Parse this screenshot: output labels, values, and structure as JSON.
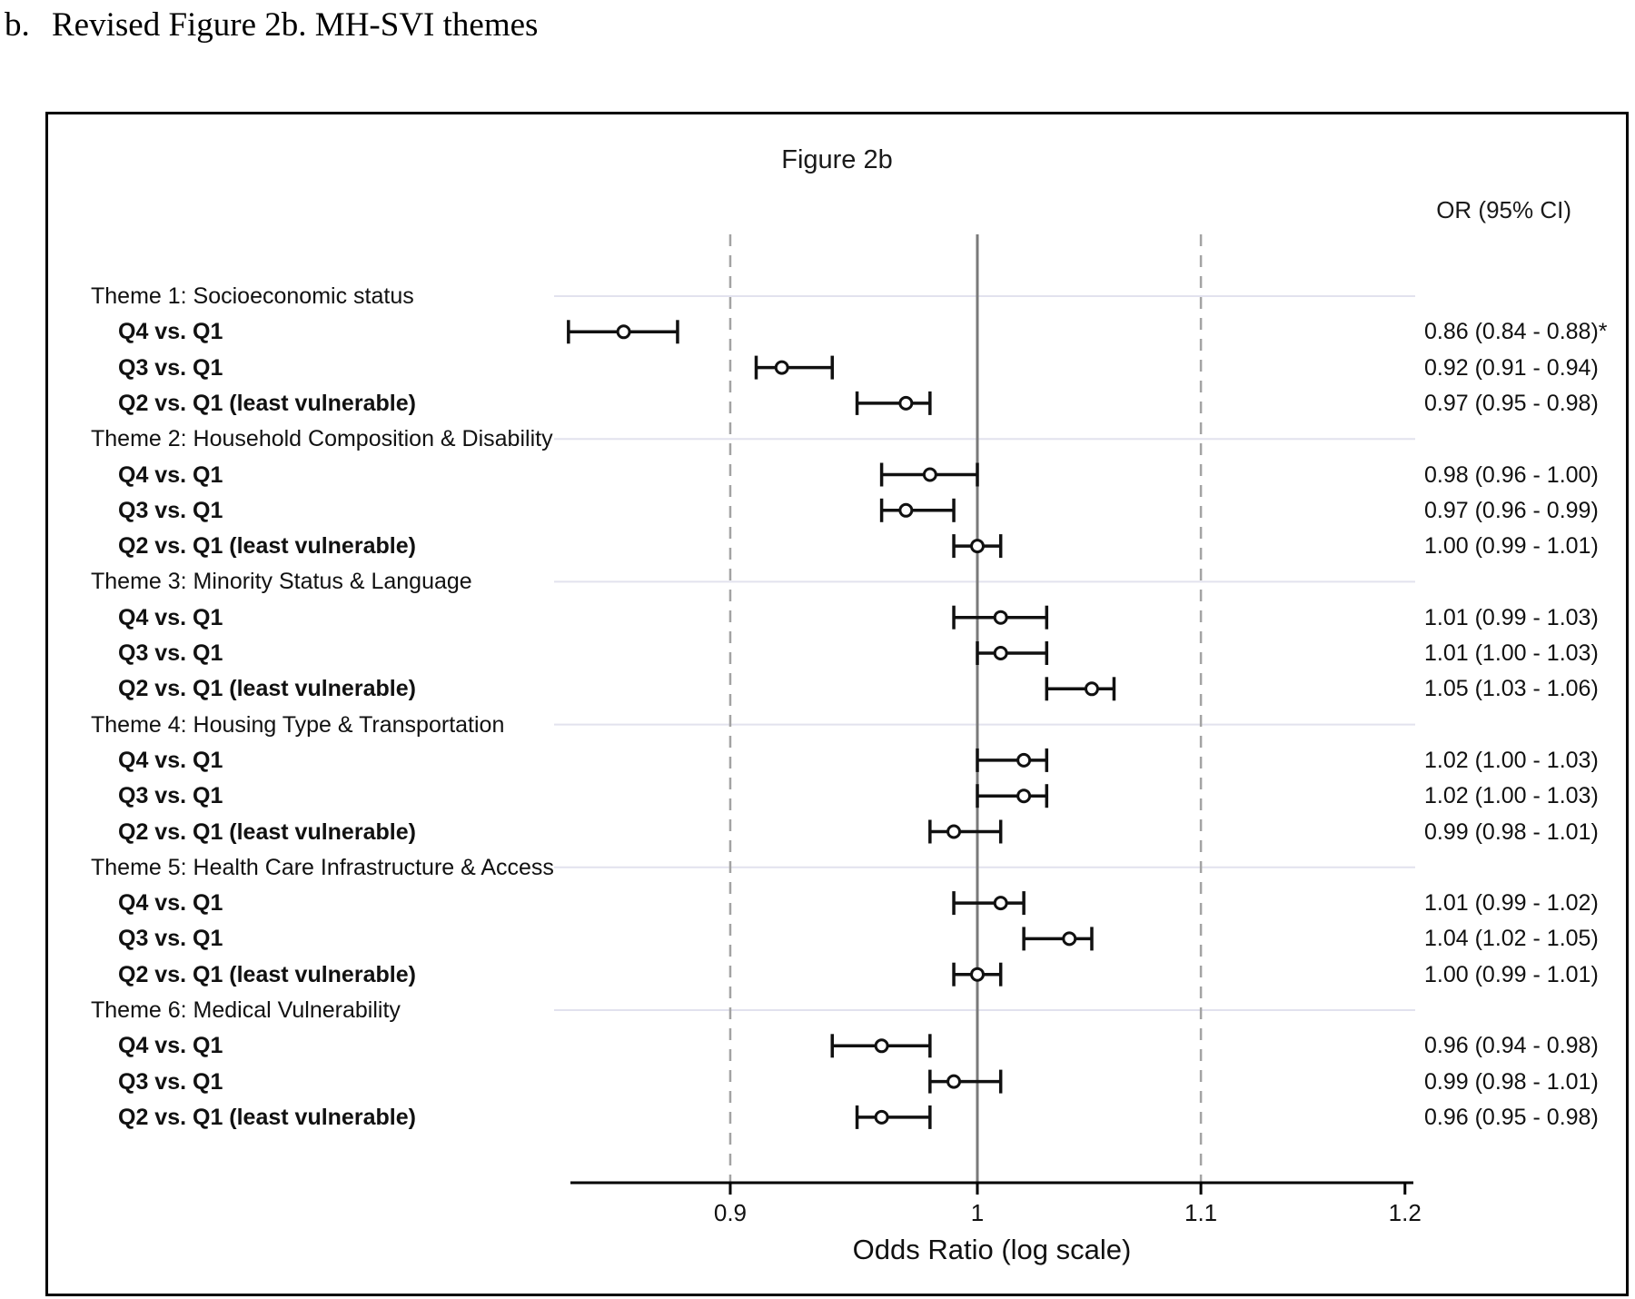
{
  "page": {
    "heading_marker": "b.",
    "heading_text": "Revised Figure 2b. MH-SVI themes"
  },
  "figure": {
    "title": "Figure 2b",
    "or_header": "OR (95% CI)",
    "xlabel": "Odds Ratio (log scale)"
  },
  "chart_data": {
    "type": "forest-plot",
    "title": "Figure 2b",
    "xlabel": "Odds Ratio (log scale)",
    "x_scale": "log",
    "xlim": [
      0.84,
      1.2
    ],
    "x_ticks": [
      0.9,
      1,
      1.1,
      1.2
    ],
    "x_tick_labels": [
      "0.9",
      "1",
      "1.1",
      "1.2"
    ],
    "reference_line": 1.0,
    "dashed_gridlines": [
      0.9,
      1.1
    ],
    "value_column_header": "OR (95% CI)",
    "colors": {
      "marker": "#111111",
      "reference_line": "#7a7a7a",
      "dashed_line": "#a3a3a3",
      "theme_gridline": "#e2e2ee",
      "axis": "#000000"
    },
    "rows": [
      {
        "type": "theme",
        "label": "Theme 1: Socioeconomic status"
      },
      {
        "type": "estimate",
        "label": "Q4 vs. Q1",
        "or": 0.86,
        "lo": 0.84,
        "hi": 0.88,
        "text": "0.86 (0.84 - 0.88)*"
      },
      {
        "type": "estimate",
        "label": "Q3 vs. Q1",
        "or": 0.92,
        "lo": 0.91,
        "hi": 0.94,
        "text": "0.92 (0.91 - 0.94)"
      },
      {
        "type": "estimate",
        "label": "Q2 vs. Q1 (least vulnerable)",
        "or": 0.97,
        "lo": 0.95,
        "hi": 0.98,
        "text": "0.97 (0.95 - 0.98)"
      },
      {
        "type": "theme",
        "label": "Theme 2: Household Composition & Disability"
      },
      {
        "type": "estimate",
        "label": "Q4 vs. Q1",
        "or": 0.98,
        "lo": 0.96,
        "hi": 1.0,
        "text": "0.98 (0.96 - 1.00)"
      },
      {
        "type": "estimate",
        "label": "Q3 vs. Q1",
        "or": 0.97,
        "lo": 0.96,
        "hi": 0.99,
        "text": "0.97 (0.96 - 0.99)"
      },
      {
        "type": "estimate",
        "label": "Q2 vs. Q1 (least vulnerable)",
        "or": 1.0,
        "lo": 0.99,
        "hi": 1.01,
        "text": "1.00 (0.99 - 1.01)"
      },
      {
        "type": "theme",
        "label": "Theme 3: Minority Status & Language"
      },
      {
        "type": "estimate",
        "label": "Q4 vs. Q1",
        "or": 1.01,
        "lo": 0.99,
        "hi": 1.03,
        "text": "1.01 (0.99 - 1.03)"
      },
      {
        "type": "estimate",
        "label": "Q3 vs. Q1",
        "or": 1.01,
        "lo": 1.0,
        "hi": 1.03,
        "text": "1.01 (1.00 - 1.03)"
      },
      {
        "type": "estimate",
        "label": "Q2 vs. Q1 (least vulnerable)",
        "or": 1.05,
        "lo": 1.03,
        "hi": 1.06,
        "text": "1.05 (1.03 - 1.06)"
      },
      {
        "type": "theme",
        "label": "Theme 4: Housing Type & Transportation"
      },
      {
        "type": "estimate",
        "label": "Q4 vs. Q1",
        "or": 1.02,
        "lo": 1.0,
        "hi": 1.03,
        "text": "1.02 (1.00 - 1.03)"
      },
      {
        "type": "estimate",
        "label": "Q3 vs. Q1",
        "or": 1.02,
        "lo": 1.0,
        "hi": 1.03,
        "text": "1.02 (1.00 - 1.03)"
      },
      {
        "type": "estimate",
        "label": "Q2 vs. Q1 (least vulnerable)",
        "or": 0.99,
        "lo": 0.98,
        "hi": 1.01,
        "text": "0.99 (0.98 - 1.01)"
      },
      {
        "type": "theme",
        "label": "Theme 5: Health Care Infrastructure & Access"
      },
      {
        "type": "estimate",
        "label": "Q4 vs. Q1",
        "or": 1.01,
        "lo": 0.99,
        "hi": 1.02,
        "text": "1.01 (0.99 - 1.02)"
      },
      {
        "type": "estimate",
        "label": "Q3 vs. Q1",
        "or": 1.04,
        "lo": 1.02,
        "hi": 1.05,
        "text": "1.04 (1.02 - 1.05)"
      },
      {
        "type": "estimate",
        "label": "Q2 vs. Q1 (least vulnerable)",
        "or": 1.0,
        "lo": 0.99,
        "hi": 1.01,
        "text": "1.00 (0.99 - 1.01)"
      },
      {
        "type": "theme",
        "label": "Theme 6: Medical Vulnerability"
      },
      {
        "type": "estimate",
        "label": "Q4 vs. Q1",
        "or": 0.96,
        "lo": 0.94,
        "hi": 0.98,
        "text": "0.96 (0.94 - 0.98)"
      },
      {
        "type": "estimate",
        "label": "Q3 vs. Q1",
        "or": 0.99,
        "lo": 0.98,
        "hi": 1.01,
        "text": "0.99 (0.98 - 1.01)"
      },
      {
        "type": "estimate",
        "label": "Q2 vs. Q1 (least vulnerable)",
        "or": 0.96,
        "lo": 0.95,
        "hi": 0.98,
        "text": "0.96 (0.95 - 0.98)"
      }
    ]
  }
}
